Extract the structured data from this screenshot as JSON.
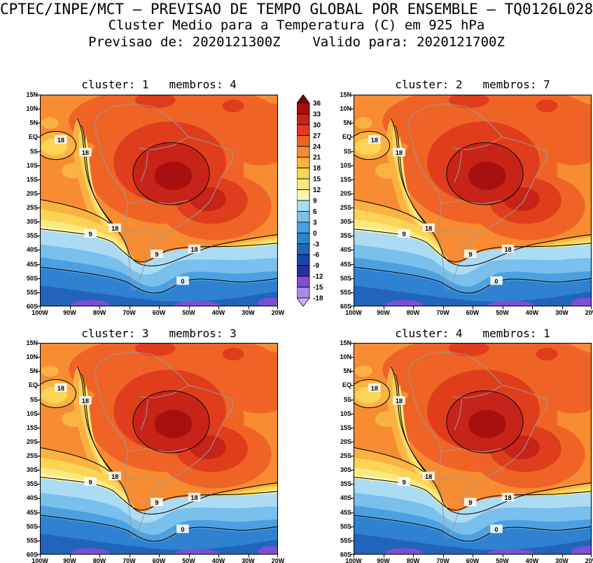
{
  "header": {
    "line1": "CPTEC/INPE/MCT — PREVISAO DE TEMPO GLOBAL POR ENSEMBLE — TQ0126L028",
    "line2": "Cluster Medio para a Temperatura (C) em 925 hPa",
    "line3": "Previsao de: 2020121300Z    Valido para: 2020121700Z"
  },
  "chart_data": {
    "type": "heatmap",
    "title": "Cluster Medio para a Temperatura (C) em 925 hPa",
    "model": "TQ0126L028",
    "init_time": "2020121300Z",
    "valid_time": "2020121700Z",
    "variable": "Temperatura (C) em 925 hPa",
    "panels": [
      {
        "label": "cluster: 1   membros: 4",
        "cluster": "1",
        "membros": "4"
      },
      {
        "label": "cluster: 2   membros: 7",
        "cluster": "2",
        "membros": "7"
      },
      {
        "label": "cluster: 3   membros: 3",
        "cluster": "3",
        "membros": "3"
      },
      {
        "label": "cluster: 4   membros: 1",
        "cluster": "4",
        "membros": "1"
      }
    ],
    "y_ticks": [
      "15N",
      "10N",
      "5N",
      "EQ",
      "5S",
      "10S",
      "15S",
      "20S",
      "25S",
      "30S",
      "35S",
      "40S",
      "45S",
      "50S",
      "55S",
      "60S"
    ],
    "x_ticks": [
      "100W",
      "90W",
      "80W",
      "70W",
      "60W",
      "50W",
      "40W",
      "30W",
      "20W"
    ],
    "colorbar": {
      "unit": "C",
      "levels": [
        "36",
        "33",
        "30",
        "27",
        "24",
        "21",
        "18",
        "15",
        "12",
        "9",
        "6",
        "3",
        "0",
        "-3",
        "-6",
        "-9",
        "-12",
        "-15",
        "-18"
      ],
      "colors": [
        "#7e0505",
        "#a81010",
        "#c72318",
        "#e03d1c",
        "#ef6426",
        "#f78c32",
        "#fab343",
        "#fcd456",
        "#fdea7e",
        "#fef6b2",
        "#abdcf4",
        "#79c0ec",
        "#4da0e0",
        "#2f82d2",
        "#2264bc",
        "#1847a6",
        "#28309c",
        "#7d4fd4",
        "#a98ae8",
        "#c9b4f4"
      ]
    },
    "contour_labels": [
      "18",
      "9",
      "0"
    ],
    "legend_position": "between top panels, vertical",
    "grid": false
  }
}
